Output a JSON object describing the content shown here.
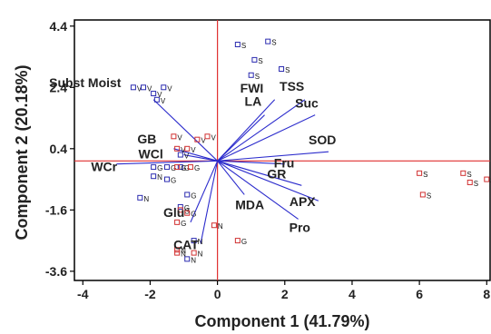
{
  "chart_data": {
    "type": "scatter",
    "title": "",
    "xlabel": "Component 1 (41.79%)",
    "ylabel": "Component 2 (20.18%)",
    "xlim": [
      -4.25,
      8.1
    ],
    "ylim": [
      -3.9,
      4.6
    ],
    "xticks": [
      -4,
      -2,
      0,
      2,
      4,
      6,
      8
    ],
    "yticks": [
      4.4,
      2.4,
      0.4,
      -1.6,
      -3.6
    ],
    "grid": false,
    "colors": {
      "axis_lines": "#e03030",
      "vectors": "#2b2bcc",
      "blue_points": "#2b2bb0",
      "red_points": "#d03030"
    },
    "vectors": [
      {
        "label": "Subst Moist",
        "x": -1.9,
        "y": 2.0
      },
      {
        "label": "FWI",
        "x": 1.7,
        "y": 2.0
      },
      {
        "label": "LA",
        "x": 1.4,
        "y": 1.5
      },
      {
        "label": "TSS",
        "x": 2.6,
        "y": 2.0
      },
      {
        "label": "Suc",
        "x": 2.9,
        "y": 1.5
      },
      {
        "label": "SOD",
        "x": 3.3,
        "y": 0.3
      },
      {
        "label": "Fru",
        "x": 2.0,
        "y": -0.1
      },
      {
        "label": "GB",
        "x": -1.3,
        "y": 0.4
      },
      {
        "label": "WCl",
        "x": -1.0,
        "y": 0.2
      },
      {
        "label": "WCr",
        "x": -3.0,
        "y": -0.1
      },
      {
        "label": "MDA",
        "x": 0.8,
        "y": -1.1
      },
      {
        "label": "GR",
        "x": 2.5,
        "y": -0.8
      },
      {
        "label": "APX",
        "x": 3.0,
        "y": -1.3
      },
      {
        "label": "Pro",
        "x": 2.4,
        "y": -1.9
      },
      {
        "label": "Glu",
        "x": -0.8,
        "y": -2.0
      },
      {
        "label": "CAT",
        "x": -0.5,
        "y": -2.7
      }
    ],
    "series": [
      {
        "name": "blue",
        "points": [
          {
            "x": 0.6,
            "y": 3.8,
            "label": "S"
          },
          {
            "x": 1.5,
            "y": 3.9,
            "label": "S"
          },
          {
            "x": 1.1,
            "y": 3.3,
            "label": "S"
          },
          {
            "x": 1.9,
            "y": 3.0,
            "label": "S"
          },
          {
            "x": 1.0,
            "y": 2.8,
            "label": "S"
          },
          {
            "x": -2.5,
            "y": 2.4,
            "label": "V"
          },
          {
            "x": -2.2,
            "y": 2.4,
            "label": "V"
          },
          {
            "x": -1.9,
            "y": 2.2,
            "label": "V"
          },
          {
            "x": -1.8,
            "y": 2.0,
            "label": "V"
          },
          {
            "x": -1.6,
            "y": 2.4,
            "label": "V"
          },
          {
            "x": -1.1,
            "y": 0.2,
            "label": "V"
          },
          {
            "x": -1.9,
            "y": -0.2,
            "label": "G"
          },
          {
            "x": -1.5,
            "y": -0.2,
            "label": "G"
          },
          {
            "x": -1.1,
            "y": -0.2,
            "label": "G"
          },
          {
            "x": -1.9,
            "y": -0.5,
            "label": "N"
          },
          {
            "x": -1.5,
            "y": -0.6,
            "label": "G"
          },
          {
            "x": -0.9,
            "y": -1.1,
            "label": "G"
          },
          {
            "x": -2.3,
            "y": -1.2,
            "label": "N"
          },
          {
            "x": -1.1,
            "y": -1.5,
            "label": "G"
          },
          {
            "x": -0.7,
            "y": -2.6,
            "label": "N"
          },
          {
            "x": -0.9,
            "y": -3.2,
            "label": "N"
          }
        ]
      },
      {
        "name": "red",
        "points": [
          {
            "x": -1.3,
            "y": 0.8,
            "label": "V"
          },
          {
            "x": -0.6,
            "y": 0.7,
            "label": "V"
          },
          {
            "x": -0.3,
            "y": 0.8,
            "label": "V"
          },
          {
            "x": -1.2,
            "y": 0.4,
            "label": "V"
          },
          {
            "x": -0.9,
            "y": 0.4,
            "label": "V"
          },
          {
            "x": -1.2,
            "y": -0.2,
            "label": "G"
          },
          {
            "x": -0.8,
            "y": -0.2,
            "label": "G"
          },
          {
            "x": -1.1,
            "y": -1.6,
            "label": "G"
          },
          {
            "x": -0.9,
            "y": -1.7,
            "label": "G"
          },
          {
            "x": -1.2,
            "y": -2.0,
            "label": "G"
          },
          {
            "x": -0.1,
            "y": -2.1,
            "label": "N"
          },
          {
            "x": 0.6,
            "y": -2.6,
            "label": "G"
          },
          {
            "x": -1.2,
            "y": -2.9,
            "label": "N"
          },
          {
            "x": -1.2,
            "y": -3.0,
            "label": "N"
          },
          {
            "x": -0.7,
            "y": -3.0,
            "label": "N"
          },
          {
            "x": 6.0,
            "y": -0.4,
            "label": "S"
          },
          {
            "x": 7.3,
            "y": -0.4,
            "label": "S"
          },
          {
            "x": 8.0,
            "y": -0.6,
            "label": "S"
          },
          {
            "x": 7.5,
            "y": -0.7,
            "label": "S"
          },
          {
            "x": 6.1,
            "y": -1.1,
            "label": "S"
          }
        ]
      }
    ]
  }
}
